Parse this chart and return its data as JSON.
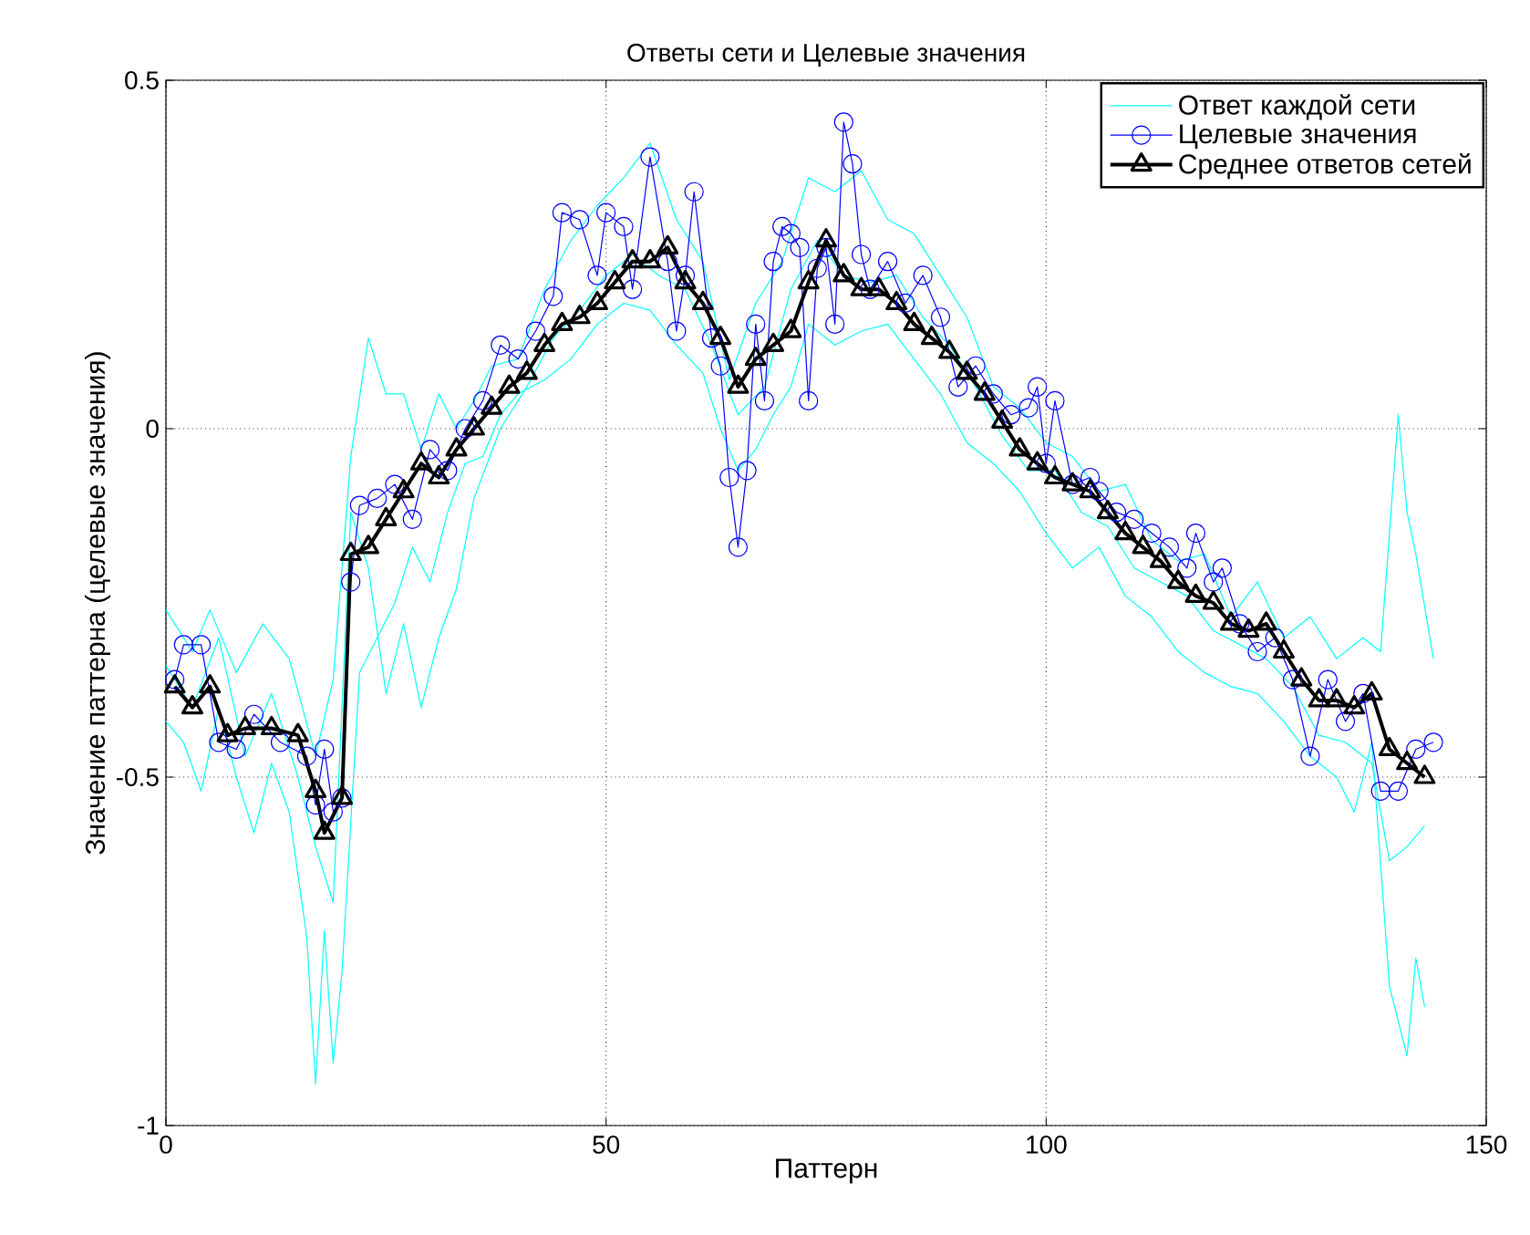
{
  "chart_data": {
    "type": "line",
    "title": "Ответы сети и Целевые значения",
    "xlabel": "Паттерн",
    "ylabel": "Значение паттерна (целевые значения)",
    "xlim": [
      0,
      150
    ],
    "ylim": [
      -1,
      0.5
    ],
    "xticks": [
      0,
      50,
      100,
      150
    ],
    "yticks": [
      -1,
      -0.5,
      0,
      0.5
    ],
    "grid": true,
    "legend": "top right",
    "series": [
      {
        "name": "Ответ каждой сети",
        "color": "#00ffff",
        "marker": "none",
        "x": [
          0,
          3,
          5,
          8,
          11,
          14,
          17,
          19,
          21,
          23,
          25,
          27,
          29,
          31,
          33,
          35,
          37,
          40,
          43,
          46,
          49,
          52,
          55,
          58,
          61,
          64,
          67,
          70,
          73,
          76,
          79,
          82,
          85,
          88,
          91,
          94,
          97,
          100,
          103,
          106,
          109,
          112,
          115,
          118,
          121,
          124,
          127,
          130,
          133,
          136,
          138,
          140,
          141,
          142,
          144
        ],
        "values": [
          -0.26,
          -0.32,
          -0.26,
          -0.35,
          -0.28,
          -0.33,
          -0.47,
          -0.36,
          -0.04,
          0.13,
          0.05,
          0.05,
          -0.03,
          0.05,
          0.0,
          0.04,
          0.09,
          0.1,
          0.2,
          0.27,
          0.32,
          0.36,
          0.41,
          0.3,
          0.24,
          0.07,
          0.18,
          0.24,
          0.36,
          0.34,
          0.37,
          0.3,
          0.28,
          0.22,
          0.16,
          0.06,
          0.03,
          -0.02,
          -0.04,
          -0.09,
          -0.08,
          -0.16,
          -0.19,
          -0.18,
          -0.27,
          -0.22,
          -0.3,
          -0.27,
          -0.33,
          -0.3,
          -0.32,
          0.02,
          -0.12,
          -0.18,
          -0.33
        ]
      },
      {
        "color": "#00ffff",
        "marker": "none",
        "x": [
          0,
          2,
          4,
          6,
          8,
          10,
          12,
          14,
          16,
          17,
          18,
          19,
          20,
          22,
          24,
          26,
          28,
          30,
          32,
          34,
          36,
          38,
          40,
          43,
          46,
          49,
          52,
          55,
          58,
          61,
          63,
          65,
          67,
          69,
          71,
          73,
          76,
          79,
          82,
          85,
          88,
          91,
          94,
          97,
          100,
          103,
          106,
          109,
          112,
          115,
          118,
          121,
          124,
          127,
          130,
          133,
          135,
          137,
          139,
          141,
          142,
          143
        ],
        "values": [
          -0.42,
          -0.45,
          -0.52,
          -0.4,
          -0.5,
          -0.58,
          -0.48,
          -0.55,
          -0.73,
          -0.94,
          -0.72,
          -0.91,
          -0.78,
          -0.35,
          -0.3,
          -0.25,
          -0.17,
          -0.22,
          -0.12,
          -0.05,
          -0.04,
          0.02,
          0.05,
          0.07,
          0.1,
          0.15,
          0.18,
          0.17,
          0.12,
          0.08,
          0.0,
          -0.06,
          -0.03,
          0.02,
          0.06,
          0.15,
          0.12,
          0.14,
          0.15,
          0.1,
          0.05,
          -0.02,
          -0.05,
          -0.09,
          -0.15,
          -0.2,
          -0.17,
          -0.24,
          -0.27,
          -0.32,
          -0.35,
          -0.37,
          -0.38,
          -0.42,
          -0.47,
          -0.5,
          -0.55,
          -0.45,
          -0.8,
          -0.9,
          -0.76,
          -0.83
        ]
      },
      {
        "color": "#00ffff",
        "marker": "none",
        "x": [
          0,
          3,
          6,
          9,
          12,
          15,
          17,
          19,
          21,
          23,
          25,
          27,
          29,
          31,
          33,
          35,
          38,
          41,
          44,
          47,
          50,
          53,
          56,
          59,
          62,
          65,
          68,
          71,
          74,
          77,
          80,
          83,
          86,
          89,
          92,
          95,
          98,
          101,
          104,
          107,
          110,
          113,
          116,
          119,
          122,
          125,
          128,
          131,
          134,
          137,
          139,
          141,
          143
        ],
        "values": [
          -0.34,
          -0.4,
          -0.3,
          -0.47,
          -0.38,
          -0.5,
          -0.6,
          -0.68,
          -0.12,
          -0.2,
          -0.38,
          -0.28,
          -0.4,
          -0.3,
          -0.23,
          -0.1,
          0.0,
          0.06,
          0.13,
          0.17,
          0.22,
          0.25,
          0.22,
          0.2,
          0.12,
          0.02,
          0.06,
          0.2,
          0.27,
          0.22,
          0.21,
          0.22,
          0.16,
          0.12,
          0.06,
          -0.01,
          -0.06,
          -0.06,
          -0.12,
          -0.14,
          -0.2,
          -0.22,
          -0.24,
          -0.29,
          -0.31,
          -0.33,
          -0.37,
          -0.44,
          -0.45,
          -0.48,
          -0.62,
          -0.6,
          -0.57
        ]
      },
      {
        "name": "Целевые значения",
        "color": "#0000ff",
        "marker": "circle",
        "x": [
          1,
          2,
          4,
          6,
          8,
          10,
          13,
          16,
          17,
          18,
          19,
          20,
          21,
          22,
          24,
          26,
          28,
          30,
          32,
          34,
          36,
          38,
          40,
          42,
          44,
          45,
          47,
          49,
          50,
          52,
          53,
          55,
          57,
          58,
          59,
          60,
          62,
          63,
          64,
          65,
          66,
          67,
          68,
          69,
          70,
          71,
          72,
          73,
          74,
          75,
          76,
          77,
          78,
          79,
          80,
          82,
          84,
          86,
          88,
          90,
          92,
          94,
          96,
          98,
          99,
          100,
          101,
          103,
          105,
          106,
          108,
          110,
          112,
          114,
          116,
          117,
          119,
          120,
          122,
          124,
          126,
          128,
          130,
          132,
          134,
          136,
          138,
          140,
          142,
          144
        ],
        "values": [
          -0.36,
          -0.31,
          -0.31,
          -0.45,
          -0.46,
          -0.41,
          -0.45,
          -0.47,
          -0.54,
          -0.46,
          -0.55,
          -0.53,
          -0.22,
          -0.11,
          -0.1,
          -0.08,
          -0.13,
          -0.03,
          -0.06,
          0.0,
          0.04,
          0.12,
          0.1,
          0.14,
          0.19,
          0.31,
          0.3,
          0.22,
          0.31,
          0.29,
          0.2,
          0.39,
          0.24,
          0.14,
          0.22,
          0.34,
          0.13,
          0.09,
          -0.07,
          -0.17,
          -0.06,
          0.15,
          0.04,
          0.24,
          0.29,
          0.28,
          0.26,
          0.04,
          0.23,
          0.26,
          0.15,
          0.44,
          0.38,
          0.25,
          0.2,
          0.24,
          0.18,
          0.22,
          0.16,
          0.06,
          0.09,
          0.05,
          0.02,
          0.03,
          0.06,
          -0.05,
          0.04,
          -0.08,
          -0.07,
          -0.09,
          -0.12,
          -0.13,
          -0.15,
          -0.17,
          -0.2,
          -0.15,
          -0.22,
          -0.2,
          -0.28,
          -0.32,
          -0.3,
          -0.36,
          -0.47,
          -0.36,
          -0.42,
          -0.38,
          -0.52,
          -0.52,
          -0.46,
          -0.45
        ]
      },
      {
        "name": "Среднее ответов сетей",
        "color": "#000000",
        "marker": "triangle",
        "x": [
          1,
          3,
          5,
          7,
          9,
          12,
          15,
          17,
          18,
          20,
          21,
          23,
          25,
          27,
          29,
          31,
          33,
          35,
          37,
          39,
          41,
          43,
          45,
          47,
          49,
          51,
          53,
          55,
          57,
          59,
          61,
          63,
          65,
          67,
          69,
          71,
          73,
          75,
          77,
          79,
          81,
          83,
          85,
          87,
          89,
          91,
          93,
          95,
          97,
          99,
          101,
          103,
          105,
          107,
          109,
          111,
          113,
          115,
          117,
          119,
          121,
          123,
          125,
          127,
          129,
          131,
          133,
          135,
          137,
          139,
          141,
          143
        ],
        "values": [
          -0.37,
          -0.4,
          -0.37,
          -0.44,
          -0.43,
          -0.43,
          -0.44,
          -0.52,
          -0.58,
          -0.53,
          -0.18,
          -0.17,
          -0.13,
          -0.09,
          -0.05,
          -0.07,
          -0.03,
          0.0,
          0.03,
          0.06,
          0.08,
          0.12,
          0.15,
          0.16,
          0.18,
          0.21,
          0.24,
          0.24,
          0.26,
          0.21,
          0.18,
          0.13,
          0.06,
          0.1,
          0.12,
          0.14,
          0.21,
          0.27,
          0.22,
          0.2,
          0.2,
          0.18,
          0.15,
          0.13,
          0.11,
          0.08,
          0.05,
          0.01,
          -0.03,
          -0.05,
          -0.07,
          -0.08,
          -0.09,
          -0.12,
          -0.15,
          -0.17,
          -0.19,
          -0.22,
          -0.24,
          -0.25,
          -0.28,
          -0.29,
          -0.28,
          -0.32,
          -0.36,
          -0.39,
          -0.39,
          -0.4,
          -0.38,
          -0.46,
          -0.48,
          -0.5
        ]
      }
    ]
  }
}
